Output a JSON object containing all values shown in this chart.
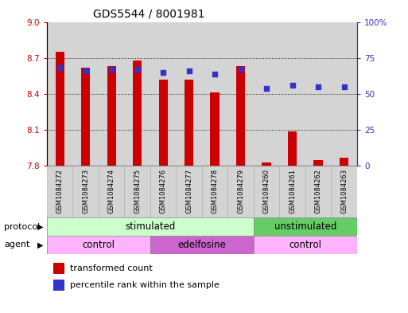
{
  "title": "GDS5544 / 8001981",
  "samples": [
    "GSM1084272",
    "GSM1084273",
    "GSM1084274",
    "GSM1084275",
    "GSM1084276",
    "GSM1084277",
    "GSM1084278",
    "GSM1084279",
    "GSM1084260",
    "GSM1084261",
    "GSM1084262",
    "GSM1084263"
  ],
  "bar_values": [
    8.75,
    8.62,
    8.63,
    8.68,
    8.52,
    8.52,
    8.41,
    8.63,
    7.83,
    8.09,
    7.85,
    7.87
  ],
  "percentile_values": [
    68,
    66,
    67,
    67,
    65,
    66,
    64,
    67,
    54,
    56,
    55,
    55
  ],
  "bar_color": "#cc0000",
  "percentile_color": "#3333cc",
  "col_bg_color": "#d4d4d4",
  "plot_bg_color": "#ffffff",
  "ymin": 7.8,
  "ymax": 9.0,
  "yticks": [
    7.8,
    8.1,
    8.4,
    8.7,
    9.0
  ],
  "y2min": 0,
  "y2max": 100,
  "y2ticks": [
    0,
    25,
    50,
    75,
    100
  ],
  "y2ticklabels": [
    "0",
    "25",
    "50",
    "75",
    "100%"
  ],
  "protocol_groups": [
    {
      "label": "stimulated",
      "start": 0,
      "end": 8,
      "color": "#ccffcc"
    },
    {
      "label": "unstimulated",
      "start": 8,
      "end": 12,
      "color": "#66cc66"
    }
  ],
  "agent_groups": [
    {
      "label": "control",
      "start": 0,
      "end": 4,
      "color": "#ffb3ff"
    },
    {
      "label": "edelfosine",
      "start": 4,
      "end": 8,
      "color": "#cc66cc"
    },
    {
      "label": "control",
      "start": 8,
      "end": 12,
      "color": "#ffb3ff"
    }
  ],
  "protocol_label": "protocol",
  "agent_label": "agent",
  "legend_bar_label": "transformed count",
  "legend_pct_label": "percentile rank within the sample",
  "title_fontsize": 10,
  "tick_fontsize": 7.5,
  "label_fontsize": 8,
  "row_fontsize": 8.5
}
